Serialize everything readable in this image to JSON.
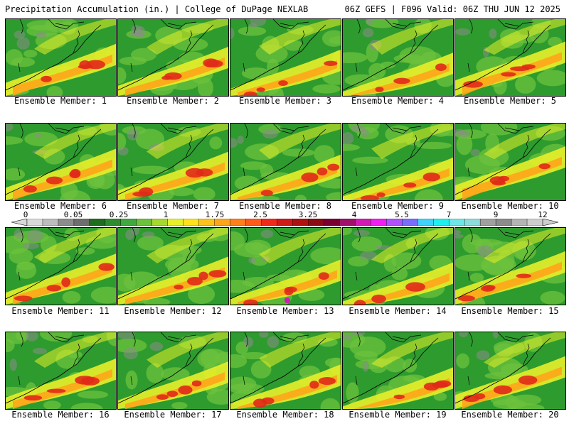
{
  "header": {
    "left_title": "Precipitation Accumulation (in.) | College of DuPage NEXLAB",
    "right_title": "06Z GEFS | F096 Valid: 06Z THU JUN 12 2025"
  },
  "members": [
    {
      "label": "Ensemble Member: 1"
    },
    {
      "label": "Ensemble Member: 2"
    },
    {
      "label": "Ensemble Member: 3"
    },
    {
      "label": "Ensemble Member: 4"
    },
    {
      "label": "Ensemble Member: 5"
    },
    {
      "label": "Ensemble Member: 6"
    },
    {
      "label": "Ensemble Member: 7"
    },
    {
      "label": "Ensemble Member: 8"
    },
    {
      "label": "Ensemble Member: 9"
    },
    {
      "label": "Ensemble Member: 10"
    },
    {
      "label": "Ensemble Member: 11"
    },
    {
      "label": "Ensemble Member: 12"
    },
    {
      "label": "Ensemble Member: 13"
    },
    {
      "label": "Ensemble Member: 14"
    },
    {
      "label": "Ensemble Member: 15"
    },
    {
      "label": "Ensemble Member: 16"
    },
    {
      "label": "Ensemble Member: 17"
    },
    {
      "label": "Ensemble Member: 18"
    },
    {
      "label": "Ensemble Member: 19"
    },
    {
      "label": "Ensemble Member: 20"
    }
  ],
  "color_scale": {
    "labels": [
      "0",
      "0.05",
      "0.25",
      "1",
      "1.75",
      "2.5",
      "3.25",
      "4",
      "5.5",
      "7",
      "9",
      "12"
    ],
    "colors": [
      "#d9d9d9",
      "#bdbdbd",
      "#8c8c8c",
      "#6e6e6e",
      "#1f6e1f",
      "#2e8b2e",
      "#3fa83f",
      "#6cc23c",
      "#a6d82e",
      "#e8f02a",
      "#ffe21a",
      "#ffc21a",
      "#ffa51a",
      "#ff7f1a",
      "#ff5a1a",
      "#f02a1a",
      "#d01a1a",
      "#b01010",
      "#8c0a14",
      "#7a0030",
      "#a0106a",
      "#d21ab4",
      "#f01ef0",
      "#b050ff",
      "#7a6cff",
      "#3fd2ff",
      "#1ef0f0",
      "#6ee6e6",
      "#8cdcdc",
      "#a0a0a0",
      "#8c8c8c",
      "#b4b4b4",
      "#cdcdcd"
    ]
  },
  "colors": {
    "field_green": "#2e9b2e",
    "light_green": "#6cc23c",
    "yellow": "#e8f02a",
    "orange": "#ffa51a",
    "red": "#e02a1a",
    "dark_red": "#a01010",
    "magenta": "#d21ab4",
    "gray": "#8c8c8c"
  }
}
